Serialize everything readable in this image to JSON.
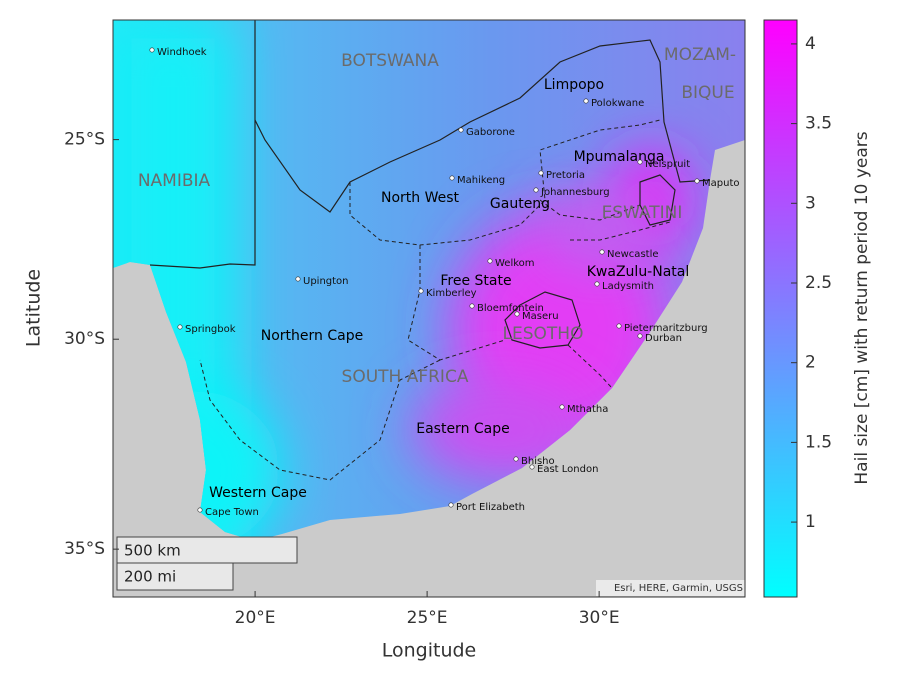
{
  "map": {
    "xlabel": "Longitude",
    "ylabel": "Latitude",
    "xlim": [
      15.87,
      34.24
    ],
    "ylim": [
      -36.1,
      -21.9
    ],
    "xticks": [
      {
        "value": 20,
        "label": "20°E"
      },
      {
        "value": 25,
        "label": "25°E"
      },
      {
        "value": 30,
        "label": "30°E"
      }
    ],
    "yticks": [
      {
        "value": -25,
        "label": "25°S"
      },
      {
        "value": -30,
        "label": "30°S"
      },
      {
        "value": -35,
        "label": "35°S"
      }
    ],
    "countries": [
      "BOTSWANA",
      "MOZAM-",
      "BIQUE",
      "NAMIBIA",
      "ESWATINI",
      "LESOTHO",
      "SOUTH AFRICA"
    ],
    "provinces": [
      "Limpopo",
      "Mpumalanga",
      "North West",
      "Gauteng",
      "Free State",
      "KwaZulu-Natal",
      "Northern Cape",
      "Eastern Cape",
      "Western Cape"
    ],
    "cities": [
      "Windhoek",
      "Polokwane",
      "Gaborone",
      "Mahikeng",
      "Pretoria",
      "Johannesburg",
      "Nelspruit",
      "Maputo",
      "Newcastle",
      "Welkom",
      "Ladysmith",
      "Upington",
      "Kimberley",
      "Bloemfontein",
      "Maseru",
      "Springbok",
      "Pietermaritzburg",
      "Durban",
      "Mthatha",
      "Bhisho",
      "East London",
      "Cape Town",
      "Port Elizabeth"
    ],
    "scalebar": [
      "500 km",
      "200 mi"
    ],
    "attribution": "Esri, HERE, Garmin, USGS"
  },
  "colorbar": {
    "label": "Hail size [cm] with return period 10 years",
    "lim": [
      0.53,
      4.15
    ],
    "ticks": [
      1,
      1.5,
      2,
      2.5,
      3,
      3.5,
      4
    ],
    "colors": [
      "#00ffff",
      "#ff00ff"
    ]
  }
}
